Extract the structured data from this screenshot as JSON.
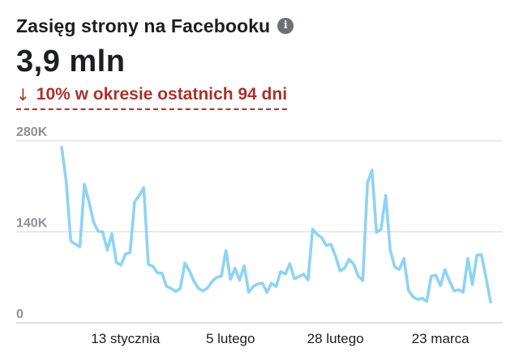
{
  "header": {
    "title": "Zasięg strony na Facebooku",
    "info_icon": "info-icon",
    "value": "3,9 mln",
    "change_arrow": "↓",
    "change_text": "10% w okresie ostatnich 94 dni"
  },
  "colors": {
    "line": "#8ed3f5",
    "decrease": "#a8322a",
    "grid": "#d5d7db",
    "text": "#1c1e21",
    "muted": "#8d9096"
  },
  "chart_data": {
    "type": "line",
    "title": "",
    "xlabel": "",
    "ylabel": "",
    "ylim": [
      0,
      280000
    ],
    "y_ticks": [
      {
        "value": 0,
        "label": "0"
      },
      {
        "value": 140000,
        "label": "140K"
      },
      {
        "value": 280000,
        "label": "280K"
      }
    ],
    "x_ticks": [
      {
        "index": 14,
        "label": "13 stycznia"
      },
      {
        "index": 37,
        "label": "5 lutego"
      },
      {
        "index": 60,
        "label": "28 lutego"
      },
      {
        "index": 83,
        "label": "23 marca"
      }
    ],
    "series": [
      {
        "values": [
          270000,
          218000,
          126000,
          121000,
          117000,
          213000,
          186000,
          155000,
          141000,
          140000,
          112000,
          137000,
          93000,
          89000,
          106000,
          108000,
          186000,
          196000,
          208000,
          90000,
          87000,
          77000,
          76000,
          56000,
          53000,
          48000,
          53000,
          92000,
          80000,
          64000,
          53000,
          49000,
          54000,
          64000,
          70000,
          72000,
          111000,
          67000,
          84000,
          66000,
          88000,
          47000,
          56000,
          60000,
          61000,
          47000,
          61000,
          56000,
          79000,
          75000,
          91000,
          68000,
          71000,
          75000,
          66000,
          144000,
          136000,
          131000,
          119000,
          121000,
          103000,
          80000,
          84000,
          98000,
          90000,
          72000,
          65000,
          215000,
          235000,
          139000,
          144000,
          196000,
          112000,
          86000,
          82000,
          99000,
          50000,
          40000,
          36000,
          38000,
          33000,
          72000,
          73000,
          57000,
          82000,
          64000,
          49000,
          51000,
          47000,
          99000,
          59000,
          104000,
          105000,
          69000,
          32000
        ]
      }
    ],
    "grid": true,
    "legend": "none"
  }
}
